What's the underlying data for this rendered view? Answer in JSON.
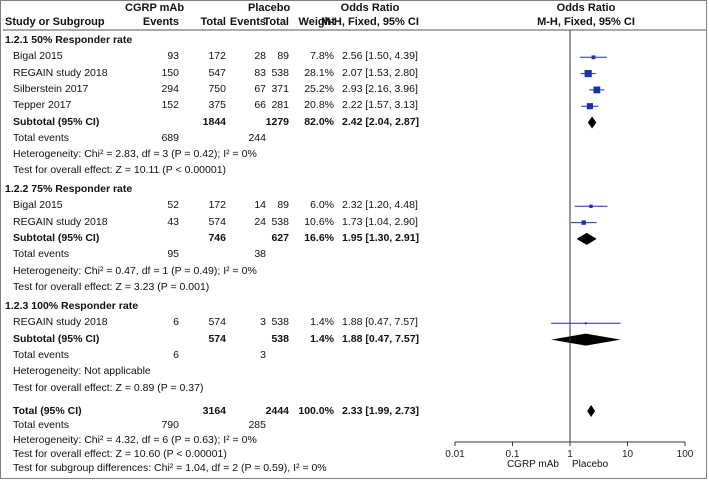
{
  "header": {
    "col_study": "Study or Subgroup",
    "group1": "CGRP mAb",
    "group2": "Placebo",
    "events1": "Events",
    "total1": "Total",
    "events2": "Events",
    "total2": "Total",
    "weight": "Weight",
    "or_title": "Odds Ratio",
    "or_method": "M-H, Fixed, 95% CI",
    "plot_title": "Odds Ratio",
    "plot_method": "M-H, Fixed, 95% CI"
  },
  "axis": {
    "ticks": [
      "0.01",
      "0.1",
      "1",
      "10",
      "100"
    ],
    "favours_left": "CGRP mAb",
    "favours_right": "Placebo"
  },
  "chart_data": {
    "type": "forest",
    "x_scale": "log",
    "xlim": [
      0.01,
      100
    ],
    "null_line": 1,
    "colors": {
      "marker": "#1f2fa8",
      "diamond": "#000000",
      "ci_line": "#1f2fa8"
    },
    "subgroups": [
      {
        "title": "1.2.1 50% Responder rate",
        "studies": [
          {
            "name": "Bigal 2015",
            "e1": "93",
            "n1": "172",
            "e2": "28",
            "n2": "89",
            "weight": "7.8%",
            "or_text": "2.56 [1.50, 4.39]",
            "or": 2.56,
            "lo": 1.5,
            "hi": 4.39
          },
          {
            "name": "REGAIN study 2018",
            "e1": "150",
            "n1": "547",
            "e2": "83",
            "n2": "538",
            "weight": "28.1%",
            "or_text": "2.07 [1.53, 2.80]",
            "or": 2.07,
            "lo": 1.53,
            "hi": 2.8
          },
          {
            "name": "Silberstein 2017",
            "e1": "294",
            "n1": "750",
            "e2": "67",
            "n2": "371",
            "weight": "25.2%",
            "or_text": "2.93 [2.16, 3.96]",
            "or": 2.93,
            "lo": 2.16,
            "hi": 3.96
          },
          {
            "name": "Tepper 2017",
            "e1": "152",
            "n1": "375",
            "e2": "66",
            "n2": "281",
            "weight": "20.8%",
            "or_text": "2.22 [1.57, 3.13]",
            "or": 2.22,
            "lo": 1.57,
            "hi": 3.13
          }
        ],
        "subtotal": {
          "label": "Subtotal (95% CI)",
          "n1": "1844",
          "n2": "1279",
          "weight": "82.0%",
          "or_text": "2.42 [2.04, 2.87]",
          "or": 2.42,
          "lo": 2.04,
          "hi": 2.87
        },
        "total_events": {
          "label": "Total events",
          "e1": "689",
          "e2": "244"
        },
        "heterogeneity": "Heterogeneity: Chi² = 2.83, df = 3 (P = 0.42); I² = 0%",
        "overall": "Test for overall effect: Z = 10.11 (P < 0.00001)"
      },
      {
        "title": "1.2.2 75% Responder rate",
        "studies": [
          {
            "name": "Bigal 2015",
            "e1": "52",
            "n1": "172",
            "e2": "14",
            "n2": "89",
            "weight": "6.0%",
            "or_text": "2.32 [1.20, 4.48]",
            "or": 2.32,
            "lo": 1.2,
            "hi": 4.48
          },
          {
            "name": "REGAIN study 2018",
            "e1": "43",
            "n1": "574",
            "e2": "24",
            "n2": "538",
            "weight": "10.6%",
            "or_text": "1.73 [1.04, 2.90]",
            "or": 1.73,
            "lo": 1.04,
            "hi": 2.9
          }
        ],
        "subtotal": {
          "label": "Subtotal (95% CI)",
          "n1": "746",
          "n2": "627",
          "weight": "16.6%",
          "or_text": "1.95 [1.30, 2.91]",
          "or": 1.95,
          "lo": 1.3,
          "hi": 2.91
        },
        "total_events": {
          "label": "Total events",
          "e1": "95",
          "e2": "38"
        },
        "heterogeneity": "Heterogeneity: Chi² = 0.47, df = 1 (P = 0.49); I² = 0%",
        "overall": "Test for overall effect: Z = 3.23 (P = 0.001)"
      },
      {
        "title": "1.2.3 100% Responder rate",
        "studies": [
          {
            "name": "REGAIN study 2018",
            "e1": "6",
            "n1": "574",
            "e2": "3",
            "n2": "538",
            "weight": "1.4%",
            "or_text": "1.88 [0.47, 7.57]",
            "or": 1.88,
            "lo": 0.47,
            "hi": 7.57
          }
        ],
        "subtotal": {
          "label": "Subtotal (95% CI)",
          "n1": "574",
          "n2": "538",
          "weight": "1.4%",
          "or_text": "1.88 [0.47, 7.57]",
          "or": 1.88,
          "lo": 0.47,
          "hi": 7.57
        },
        "total_events": {
          "label": "Total events",
          "e1": "6",
          "e2": "3"
        },
        "heterogeneity": "Heterogeneity: Not applicable",
        "overall": "Test for overall effect: Z = 0.89 (P = 0.37)"
      }
    ],
    "total": {
      "label": "Total (95% CI)",
      "n1": "3164",
      "n2": "2444",
      "weight": "100.0%",
      "or_text": "2.33 [1.99, 2.73]",
      "or": 2.33,
      "lo": 1.99,
      "hi": 2.73
    },
    "total_events": {
      "label": "Total events",
      "e1": "790",
      "e2": "285"
    },
    "heterogeneity": "Heterogeneity: Chi² = 4.32, df = 6 (P = 0.63); I² = 0%",
    "overall": "Test for overall effect: Z = 10.60 (P < 0.00001)",
    "subgroup_diff": "Test for subgroup differences: Chi² = 1.04, df = 2 (P = 0.59), I² = 0%"
  }
}
